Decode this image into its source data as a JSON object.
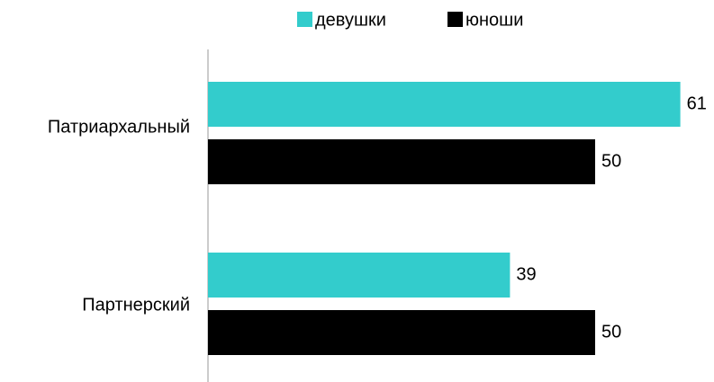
{
  "chart_data": {
    "type": "hbar",
    "categories": [
      "Патриархальный",
      "Партнерский"
    ],
    "series": [
      {
        "name": "девушки",
        "color": "#33cccc",
        "values": [
          61,
          39
        ]
      },
      {
        "name": "юноши",
        "color": "#000000",
        "values": [
          50,
          50
        ]
      }
    ],
    "xlim": [
      0,
      65
    ],
    "legend": "top"
  }
}
